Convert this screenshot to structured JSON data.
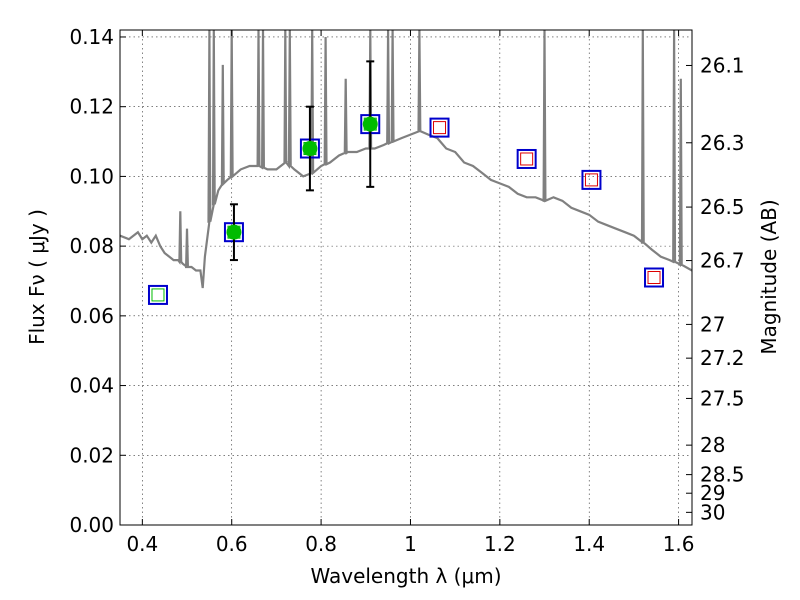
{
  "chart_data": {
    "type": "scatter",
    "title": "",
    "xlabel": "Wavelength  λ (μm)",
    "ylabel": "Flux  Fν  ( μJy )",
    "ylabel_right": "Magnitude (AB)",
    "xlim": [
      0.35,
      1.63
    ],
    "ylim": [
      0.0,
      0.142
    ],
    "grid": true,
    "x_ticks": [
      0.4,
      0.6,
      0.8,
      1.0,
      1.2,
      1.4,
      1.6
    ],
    "x_tick_labels": [
      "0.4",
      "0.6",
      "0.8",
      "1",
      "1.2",
      "1.4",
      "1.6"
    ],
    "y_ticks": [
      0.0,
      0.02,
      0.04,
      0.06,
      0.08,
      0.1,
      0.12,
      0.14
    ],
    "y_tick_labels": [
      "0.00",
      "0.02",
      "0.04",
      "0.06",
      "0.08",
      "0.10",
      "0.12",
      "0.14"
    ],
    "mag_ticks": [
      26.1,
      26.3,
      26.5,
      26.7,
      27,
      27.2,
      27.5,
      28,
      28.5,
      29,
      30
    ],
    "mag_tick_labels": [
      "26.1",
      "26.3",
      "26.5",
      "26.7",
      "27",
      "27.2",
      "27.5",
      "28",
      "28.5",
      "29",
      "30"
    ],
    "colors": {
      "spectrum": "#808080",
      "observed": "#00bb00",
      "model_box": "#0000cc",
      "model_inner_red": "#dd0000",
      "model_inner_green": "#00bb00",
      "errorbar": "#000000"
    },
    "series": [
      {
        "style": "line",
        "x": [
          0.35,
          0.37,
          0.39,
          0.4,
          0.41,
          0.42,
          0.43,
          0.44,
          0.45,
          0.46,
          0.47,
          0.48,
          0.49,
          0.5,
          0.51,
          0.52,
          0.53,
          0.535,
          0.54,
          0.55,
          0.56,
          0.57,
          0.58,
          0.59,
          0.6,
          0.62,
          0.64,
          0.66,
          0.68,
          0.7,
          0.72,
          0.74,
          0.76,
          0.78,
          0.8,
          0.82,
          0.84,
          0.86,
          0.88,
          0.9,
          0.92,
          0.94,
          0.96,
          0.98,
          1.0,
          1.02,
          1.04,
          1.06,
          1.08,
          1.1,
          1.12,
          1.14,
          1.16,
          1.18,
          1.2,
          1.22,
          1.24,
          1.26,
          1.28,
          1.3,
          1.32,
          1.34,
          1.36,
          1.38,
          1.4,
          1.42,
          1.44,
          1.46,
          1.48,
          1.5,
          1.52,
          1.54,
          1.56,
          1.58,
          1.6,
          1.63
        ],
        "y": [
          0.083,
          0.082,
          0.084,
          0.082,
          0.083,
          0.081,
          0.083,
          0.08,
          0.078,
          0.077,
          0.076,
          0.076,
          0.075,
          0.074,
          0.074,
          0.073,
          0.073,
          0.068,
          0.077,
          0.087,
          0.092,
          0.096,
          0.098,
          0.099,
          0.1,
          0.102,
          0.103,
          0.103,
          0.102,
          0.102,
          0.104,
          0.102,
          0.1,
          0.101,
          0.103,
          0.104,
          0.106,
          0.107,
          0.107,
          0.108,
          0.108,
          0.109,
          0.11,
          0.111,
          0.112,
          0.113,
          0.112,
          0.111,
          0.108,
          0.107,
          0.104,
          0.103,
          0.101,
          0.099,
          0.098,
          0.097,
          0.095,
          0.094,
          0.094,
          0.093,
          0.094,
          0.093,
          0.091,
          0.09,
          0.089,
          0.087,
          0.086,
          0.085,
          0.084,
          0.083,
          0.081,
          0.079,
          0.077,
          0.076,
          0.075,
          0.073
        ]
      },
      {
        "style": "points",
        "x": [
          0.605,
          0.775,
          0.91
        ],
        "y": [
          0.084,
          0.108,
          0.115
        ],
        "err": [
          0.008,
          0.012,
          0.018
        ]
      },
      {
        "style": "boxes",
        "x": [
          0.435,
          0.605,
          0.775,
          0.91,
          1.065,
          1.26,
          1.405,
          1.545
        ],
        "y": [
          0.066,
          0.084,
          0.108,
          0.115,
          0.114,
          0.105,
          0.099,
          0.071
        ],
        "inner": [
          "green",
          "green",
          "green",
          "green",
          "red",
          "red",
          "red",
          "red"
        ]
      }
    ],
    "spectrum_spikes": [
      {
        "x": 0.485,
        "y": 0.09
      },
      {
        "x": 0.5,
        "y": 0.085
      },
      {
        "x": 0.55,
        "y": 0.142
      },
      {
        "x": 0.56,
        "y": 0.142
      },
      {
        "x": 0.58,
        "y": 0.132
      },
      {
        "x": 0.6,
        "y": 0.142
      },
      {
        "x": 0.66,
        "y": 0.142
      },
      {
        "x": 0.67,
        "y": 0.142
      },
      {
        "x": 0.72,
        "y": 0.142
      },
      {
        "x": 0.73,
        "y": 0.142
      },
      {
        "x": 0.78,
        "y": 0.142
      },
      {
        "x": 0.81,
        "y": 0.14
      },
      {
        "x": 0.855,
        "y": 0.128
      },
      {
        "x": 0.91,
        "y": 0.142
      },
      {
        "x": 0.95,
        "y": 0.142
      },
      {
        "x": 0.96,
        "y": 0.142
      },
      {
        "x": 1.02,
        "y": 0.142
      },
      {
        "x": 1.3,
        "y": 0.142
      },
      {
        "x": 1.52,
        "y": 0.142
      },
      {
        "x": 1.59,
        "y": 0.142
      },
      {
        "x": 1.605,
        "y": 0.128
      }
    ]
  }
}
